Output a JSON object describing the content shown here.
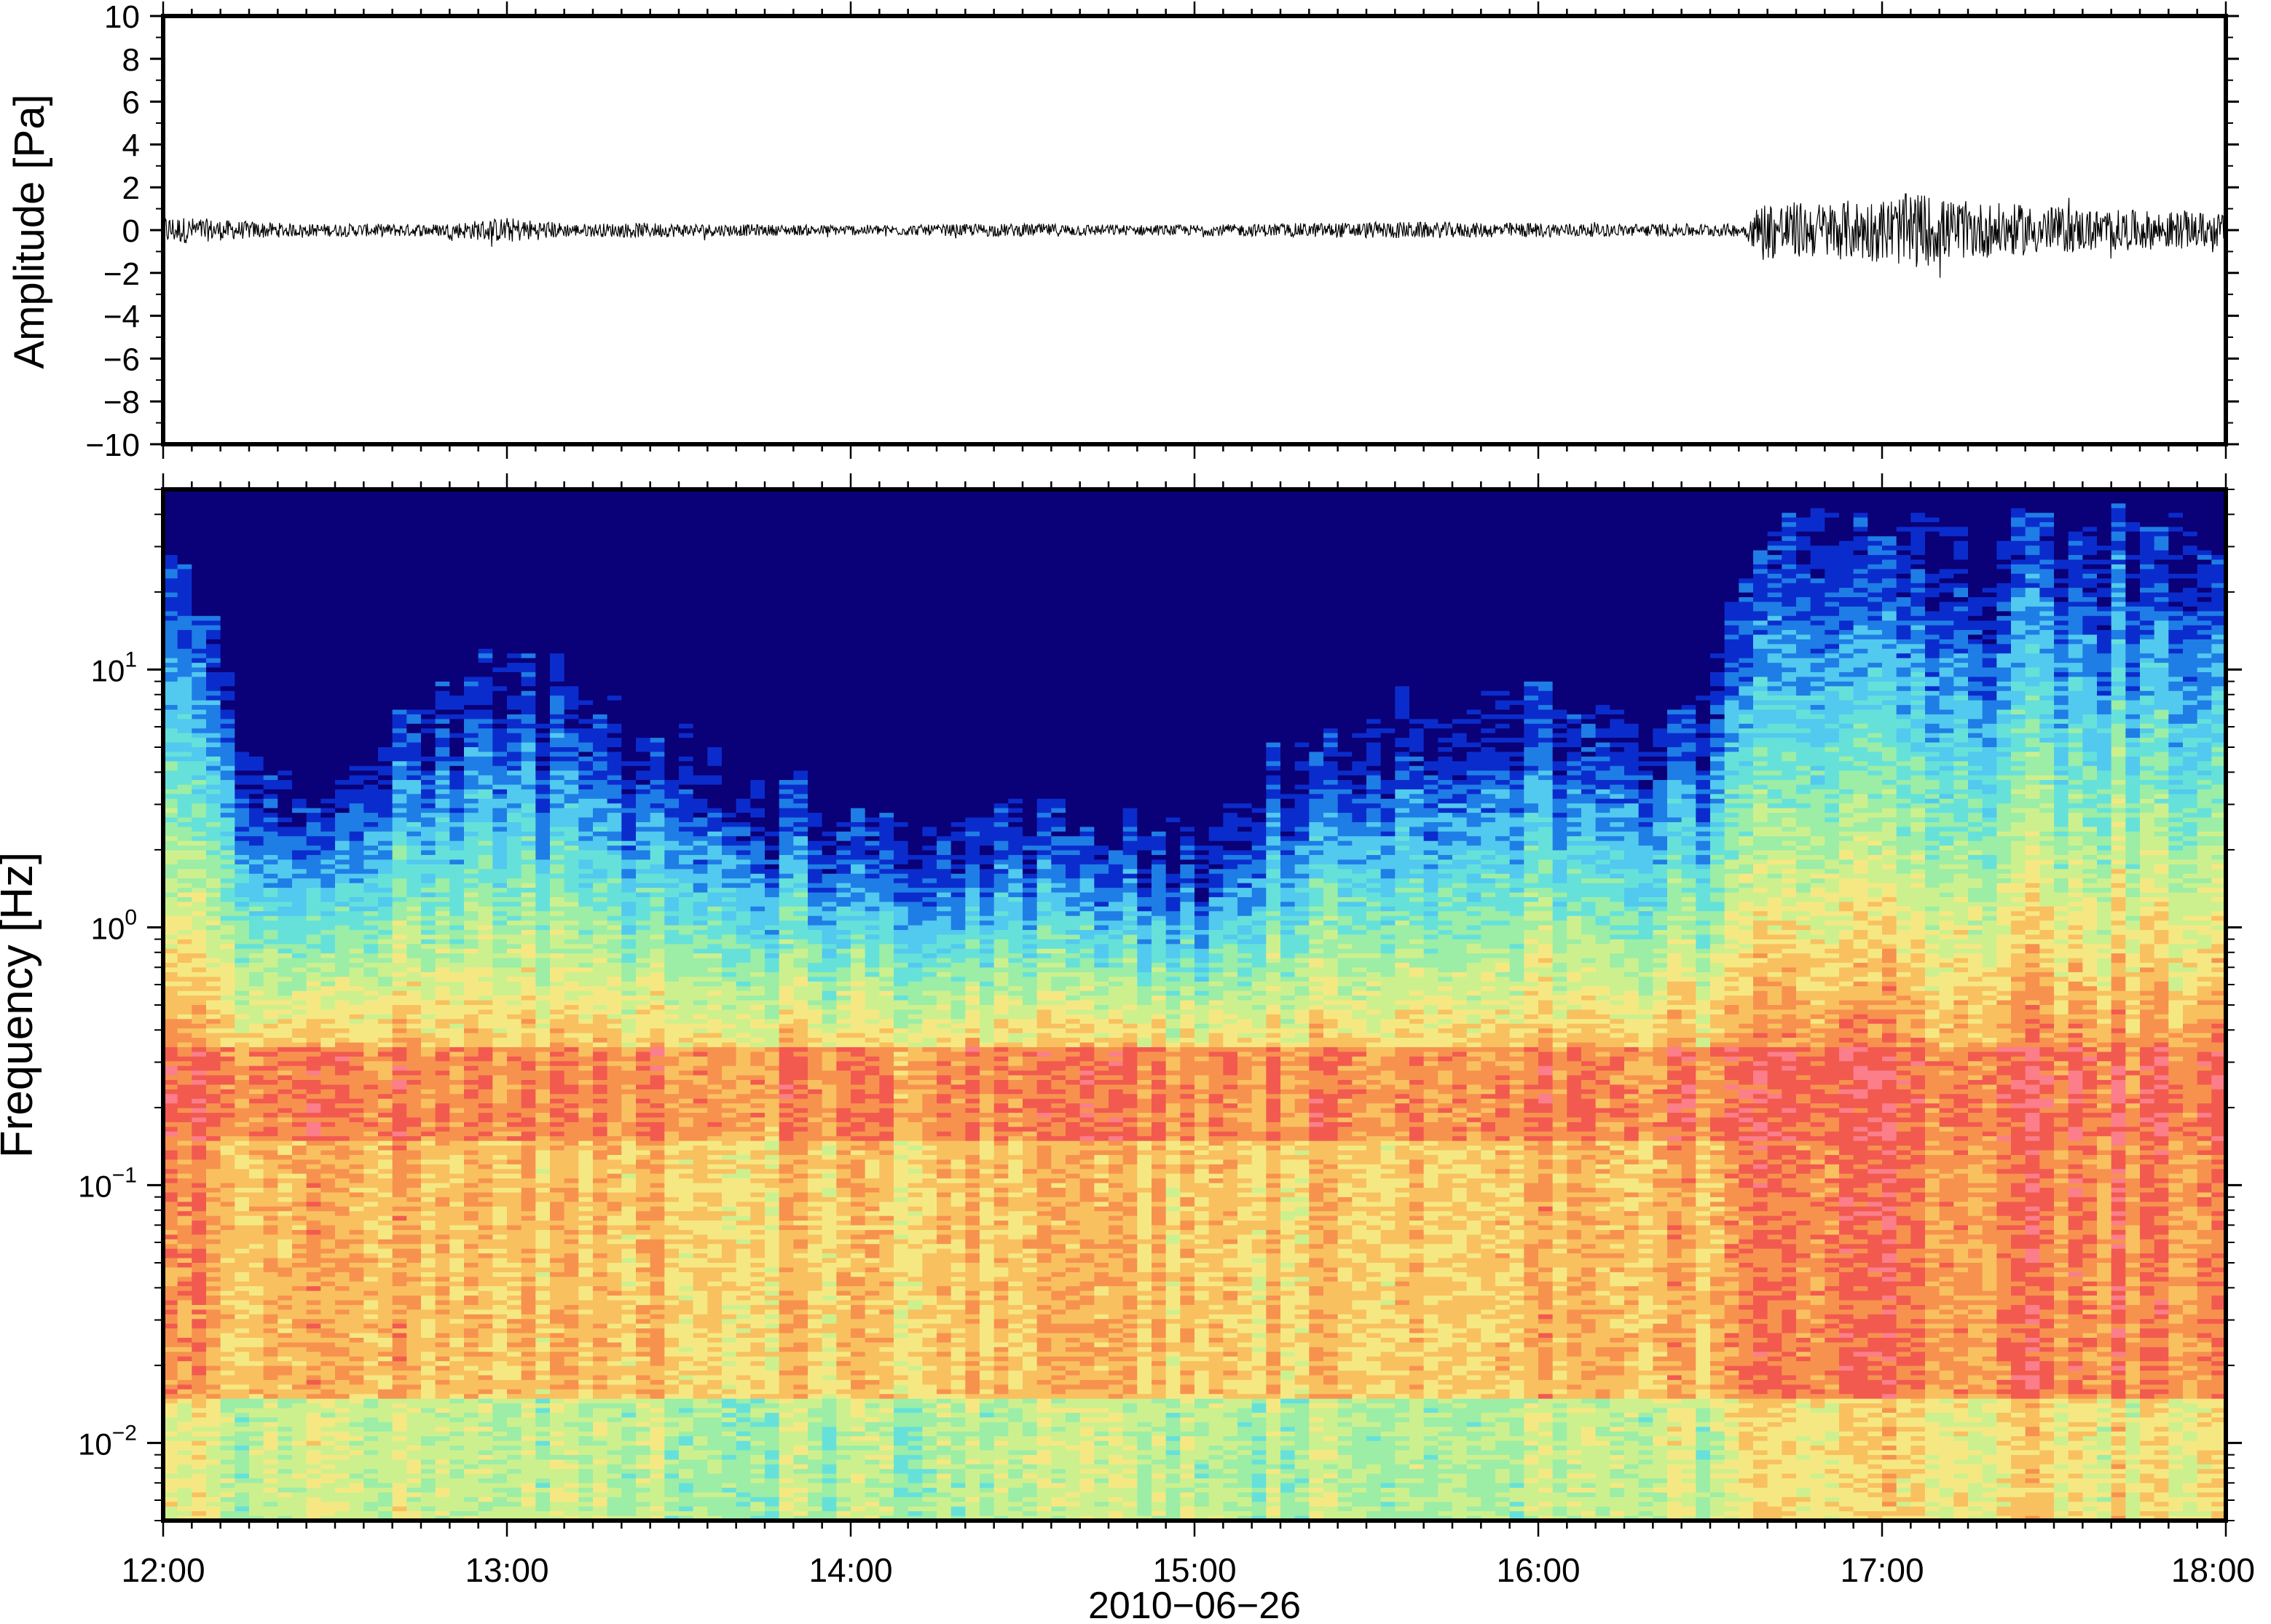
{
  "chart_data": [
    {
      "type": "line",
      "panel": "waveform",
      "ylabel": "Amplitude [Pa]",
      "ylim": [
        -10,
        10
      ],
      "yticks": [
        10,
        8,
        6,
        4,
        2,
        0,
        -2,
        -4,
        -6,
        -8,
        -10
      ],
      "ytick_labels": [
        "10",
        "8",
        "6",
        "4",
        "2",
        "0",
        "−2",
        "−4",
        "−6",
        "−8",
        "−10"
      ],
      "xlim": [
        "12:00",
        "18:00"
      ],
      "grid": false,
      "envelope": {
        "description_free": true,
        "time_hours": [
          12.0,
          12.2,
          12.4,
          12.6,
          12.8,
          13.0,
          13.2,
          13.4,
          13.6,
          13.8,
          14.0,
          14.2,
          14.4,
          14.6,
          14.8,
          15.0,
          15.2,
          15.4,
          15.6,
          15.8,
          16.0,
          16.2,
          16.4,
          16.6,
          16.65,
          16.8,
          17.0,
          17.1,
          17.2,
          17.4,
          17.6,
          17.8,
          18.0
        ],
        "amplitude_pa": [
          0.7,
          0.45,
          0.3,
          0.3,
          0.3,
          0.6,
          0.3,
          0.35,
          0.3,
          0.25,
          0.25,
          0.25,
          0.3,
          0.3,
          0.25,
          0.25,
          0.3,
          0.35,
          0.4,
          0.35,
          0.35,
          0.3,
          0.3,
          0.3,
          1.4,
          1.3,
          1.5,
          1.8,
          1.4,
          1.2,
          1.0,
          0.9,
          0.8
        ]
      }
    },
    {
      "type": "heatmap",
      "panel": "spectrogram",
      "ylabel": "Frequency [Hz]",
      "yscale": "log",
      "ylim": [
        0.005,
        50
      ],
      "yticks": [
        10,
        1,
        0.1,
        0.01
      ],
      "ytick_labels": [
        {
          "base": "10",
          "exp": "1"
        },
        {
          "base": "10",
          "exp": "0"
        },
        {
          "base": "10",
          "exp": "−1"
        },
        {
          "base": "10",
          "exp": "−2"
        }
      ],
      "xlabel": "2010−06−26",
      "xticks": [
        "12:00",
        "13:00",
        "14:00",
        "15:00",
        "16:00",
        "17:00",
        "18:00"
      ],
      "colormap": [
        "#0a0078",
        "#0b2ccc",
        "#1f7de6",
        "#52c9ee",
        "#66e1da",
        "#9ceda6",
        "#cdf08e",
        "#f5e882",
        "#f9c060",
        "#f7924e",
        "#f25a4f",
        "#fb7e8a"
      ],
      "grid": false,
      "intensity": {
        "note_free": true,
        "time_hours": [
          12.0,
          12.25,
          12.5,
          13.0,
          13.5,
          14.0,
          14.5,
          15.0,
          15.5,
          16.0,
          16.5,
          16.65,
          17.0,
          17.5,
          18.0
        ],
        "cutoff_hz": [
          20,
          3,
          2,
          8,
          4,
          2,
          2,
          1.5,
          5,
          6,
          5,
          25,
          25,
          28,
          25
        ],
        "low_band_level": [
          0.75,
          0.62,
          0.6,
          0.62,
          0.58,
          0.5,
          0.55,
          0.55,
          0.55,
          0.6,
          0.62,
          0.88,
          0.95,
          0.9,
          0.85
        ]
      }
    }
  ]
}
